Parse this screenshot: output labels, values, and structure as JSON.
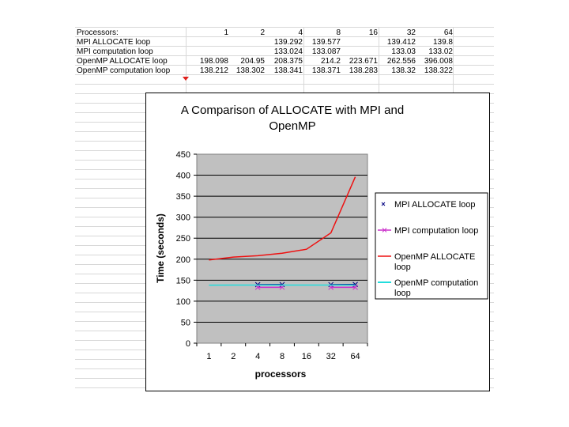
{
  "table": {
    "header_label": "Processors:",
    "columns": [
      "1",
      "2",
      "4",
      "8",
      "16",
      "32",
      "64"
    ],
    "rows": [
      {
        "label": "MPI ALLOCATE loop",
        "cells": [
          "",
          "",
          "139.292",
          "139.577",
          "",
          "139.412",
          "139.8"
        ]
      },
      {
        "label": "MPI computation loop",
        "cells": [
          "",
          "",
          "133.024",
          "133.087",
          "",
          "133.03",
          "133.02"
        ]
      },
      {
        "label": "OpenMP ALLOCATE loop",
        "cells": [
          "198.098",
          "204.95",
          "208.375",
          "214.2",
          "223.671",
          "262.556",
          "396.008"
        ]
      },
      {
        "label": "OpenMP computation loop",
        "cells": [
          "138.212",
          "138.302",
          "138.341",
          "138.371",
          "138.283",
          "138.32",
          "138.322"
        ]
      }
    ]
  },
  "chart_data": {
    "type": "line",
    "title": "A Comparison of ALLOCATE with MPI and OpenMP",
    "title_lines": [
      "A Comparison of ALLOCATE with MPI and",
      "OpenMP"
    ],
    "xlabel": "processors",
    "ylabel": "Time (seconds)",
    "categories": [
      "1",
      "2",
      "4",
      "8",
      "16",
      "32",
      "64"
    ],
    "ylim": [
      0,
      450
    ],
    "yticks": [
      "0",
      "50",
      "100",
      "150",
      "200",
      "250",
      "300",
      "350",
      "400",
      "450"
    ],
    "grid": true,
    "legend_position": "right",
    "series": [
      {
        "name": "MPI ALLOCATE loop",
        "name_lines": [
          "MPI ALLOCATE loop"
        ],
        "color": "#000080",
        "values": [
          null,
          null,
          139.292,
          139.577,
          null,
          139.412,
          139.8
        ]
      },
      {
        "name": "MPI computation loop",
        "name_lines": [
          "MPI computation loop"
        ],
        "color": "#cc33cc",
        "values": [
          null,
          null,
          133.024,
          133.087,
          null,
          133.03,
          133.02
        ]
      },
      {
        "name": "OpenMP ALLOCATE loop",
        "name_lines": [
          "OpenMP ALLOCATE",
          "loop"
        ],
        "color": "#ee1111",
        "values": [
          198.098,
          204.95,
          208.375,
          214.2,
          223.671,
          262.556,
          396.008
        ]
      },
      {
        "name": "OpenMP computation loop",
        "name_lines": [
          "OpenMP computation",
          "loop"
        ],
        "color": "#22dddd",
        "values": [
          138.212,
          138.302,
          138.341,
          138.371,
          138.283,
          138.32,
          138.322
        ]
      }
    ]
  }
}
